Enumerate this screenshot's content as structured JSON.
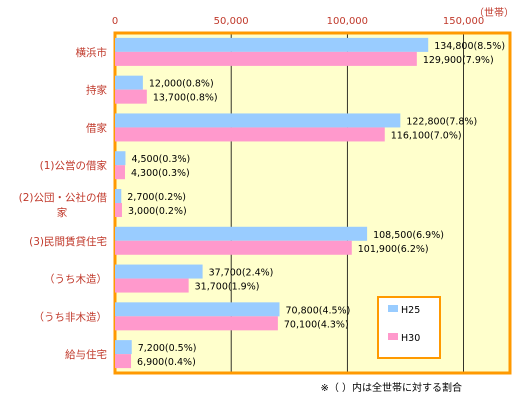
{
  "chart_data": {
    "type": "bar",
    "orientation": "horizontal",
    "unit_label": "（世帯）",
    "xlim": [
      0,
      170000
    ],
    "x_ticks": [
      {
        "value": 0,
        "label": "0"
      },
      {
        "value": 50000,
        "label": "50,000"
      },
      {
        "value": 100000,
        "label": "100,000"
      },
      {
        "value": 150000,
        "label": "150,000"
      }
    ],
    "categories": [
      [
        "横浜市"
      ],
      [
        "持家"
      ],
      [
        "借家"
      ],
      [
        "(1)公営の借家"
      ],
      [
        "(2)公団・公社の借",
        "家"
      ],
      [
        "(3)民間賃貸住宅"
      ],
      [
        "（うち木造）"
      ],
      [
        "（うち非木造）"
      ],
      [
        "給与住宅"
      ]
    ],
    "series": [
      {
        "name": "H25",
        "color": "#99ccff",
        "values": [
          134800,
          12000,
          122800,
          4500,
          2700,
          108500,
          37700,
          70800,
          7200
        ],
        "labels": [
          "134,800(8.5%)",
          "12,000(0.8%)",
          "122,800(7.8%)",
          "4,500(0.3%)",
          "2,700(0.2%)",
          "108,500(6.9%)",
          "37,700(2.4%)",
          "70,800(4.5%)",
          "7,200(0.5%)"
        ]
      },
      {
        "name": "H30",
        "color": "#ff99cc",
        "values": [
          129900,
          13700,
          116100,
          4300,
          3000,
          101900,
          31700,
          70100,
          6900
        ],
        "labels": [
          "129,900(7.9%)",
          "13,700(0.8%)",
          "116,100(7.0%)",
          "4,300(0.3%)",
          "3,000(0.2%)",
          "101,900(6.2%)",
          "31,700(1.9%)",
          "70,100(4.3%)",
          "6,900(0.4%)"
        ]
      }
    ],
    "grid": true,
    "legend_position": "bottom-right",
    "plot_background": "#ffffcc",
    "frame_color": "#ff9900",
    "note": "※（  ）内は全世帯に対する割合"
  }
}
